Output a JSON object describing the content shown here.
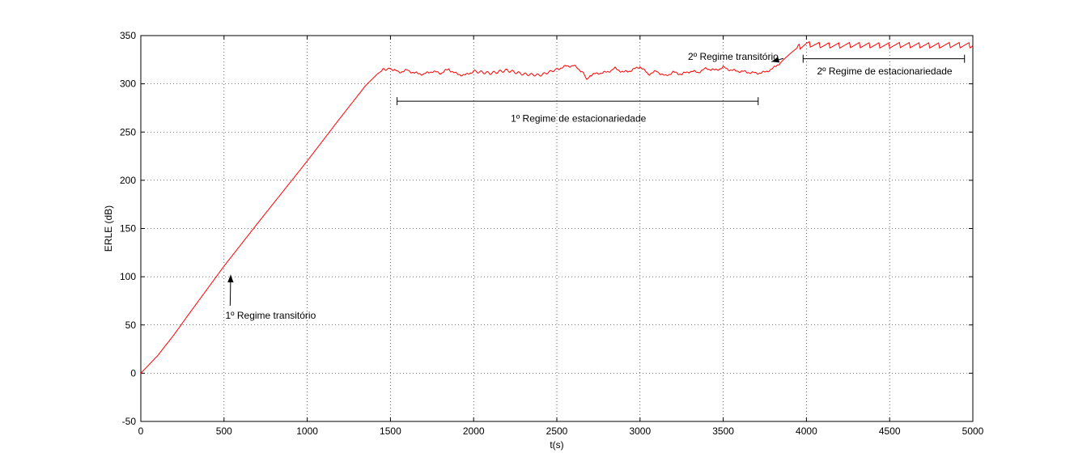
{
  "chart_data": {
    "type": "line",
    "title": "",
    "xlabel": "t(s)",
    "ylabel": "ERLE (dB)",
    "xlim": [
      0,
      5000
    ],
    "ylim": [
      -50,
      350
    ],
    "xticks": [
      0,
      500,
      1000,
      1500,
      2000,
      2500,
      3000,
      3500,
      4000,
      4500,
      5000
    ],
    "yticks": [
      -50,
      0,
      50,
      100,
      150,
      200,
      250,
      300,
      350
    ],
    "xtick_labels": [
      "0",
      "500",
      "1000",
      "1500",
      "2000",
      "2500",
      "3000",
      "3500",
      "4000",
      "4500",
      "5000"
    ],
    "ytick_labels": [
      "-50",
      "0",
      "50",
      "100",
      "150",
      "200",
      "250",
      "300",
      "350"
    ],
    "grid": true,
    "line_color": "#ff0000",
    "series": [
      {
        "x": [
          0,
          100,
          200,
          300,
          500,
          700,
          1000,
          1200,
          1350,
          1420,
          1460,
          1500,
          1550,
          1600,
          1650,
          1700,
          1750,
          1800,
          1850,
          1900,
          1950,
          2000,
          2100,
          2200,
          2300,
          2400,
          2500,
          2550,
          2600,
          2650,
          2680,
          2700,
          2750,
          2800,
          2850,
          2900,
          2950,
          3000,
          3050,
          3100,
          3150,
          3200,
          3250,
          3300,
          3350,
          3400,
          3450,
          3500,
          3550,
          3600,
          3650,
          3700,
          3750,
          3800,
          3850,
          3900,
          3950,
          3980,
          4000,
          4100,
          4200,
          4300,
          4400,
          4500,
          4600,
          4700,
          4800,
          4900,
          5000
        ],
        "y": [
          0,
          18,
          40,
          64,
          111,
          155,
          220,
          265,
          298,
          310,
          315,
          316,
          312,
          314,
          311,
          310,
          313,
          311,
          315,
          310,
          309,
          313,
          311,
          314,
          310,
          309,
          315,
          318,
          319,
          313,
          305,
          309,
          311,
          312,
          316,
          312,
          314,
          318,
          310,
          313,
          308,
          312,
          310,
          313,
          312,
          316,
          314,
          317,
          314,
          313,
          312,
          311,
          312,
          316,
          323,
          331,
          338,
          340,
          341,
          340,
          340,
          340,
          340,
          340,
          340,
          340,
          340,
          340,
          340
        ]
      }
    ],
    "annotations": [
      {
        "text": "1º Regime transitório",
        "x": 780,
        "y": 60,
        "arrow_to": [
          540,
          102
        ]
      },
      {
        "text": "2º Regime transitório",
        "x": 3560,
        "y": 328,
        "arrow_to": [
          3790,
          323
        ]
      },
      {
        "text": "1º Regime de estacionariedade",
        "x": 2630,
        "y": 264,
        "bracket": [
          1540,
          3710,
          282
        ]
      },
      {
        "text": "2º Regime de estacionariedade",
        "x": 4470,
        "y": 313,
        "bracket": [
          3980,
          4950,
          326
        ]
      }
    ]
  }
}
